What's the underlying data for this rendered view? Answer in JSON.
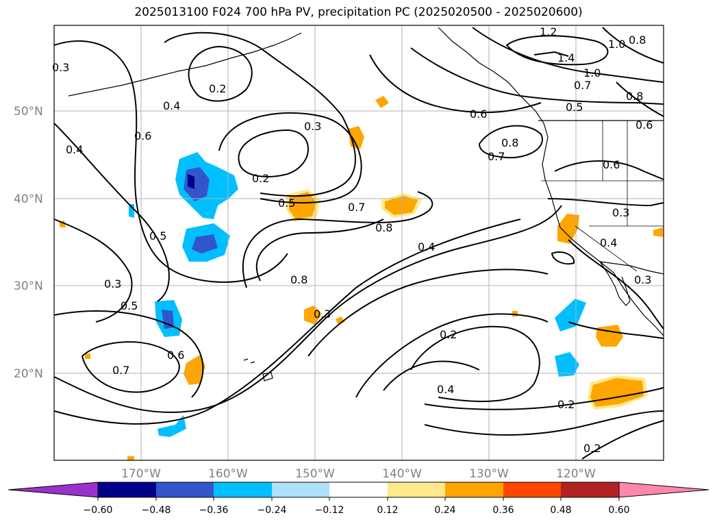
{
  "title": "2025013100 F024 700 hPa PV, precipitation PC (2025020500 - 2025020600)",
  "lat_labels": [
    "50°N",
    "40°N",
    "30°N",
    "20°N"
  ],
  "lon_labels": [
    "170°W",
    "160°W",
    "150°W",
    "140°W",
    "130°W",
    "120°W"
  ],
  "contour_labels": [
    "0.2",
    "0.4",
    "0.3",
    "0.6",
    "0.4",
    "0.2",
    "0.3",
    "0.5",
    "0.7",
    "0.8",
    "0.5",
    "0.3",
    "0.5",
    "0.6",
    "0.7",
    "0.8",
    "0.3",
    "0.4",
    "0.2",
    "0.4",
    "0.2",
    "0.2",
    "0.6",
    "0.8",
    "0.7",
    "0.5",
    "0.7",
    "1.0",
    "1.2",
    "1.4",
    "1.0",
    "0.8",
    "0.8",
    "0.6",
    "0.6",
    "0.3",
    "0.4",
    "0.3"
  ],
  "colorbar": {
    "ticks": [
      "−0.60",
      "−0.48",
      "−0.36",
      "−0.24",
      "−0.12",
      "0.12",
      "0.24",
      "0.36",
      "0.48",
      "0.60"
    ],
    "colors": [
      "#9932cc",
      "#00008b",
      "#3355cc",
      "#00bfff",
      "#aee2fa",
      "#ffffff",
      "#ffe98a",
      "#ffa500",
      "#ff4500",
      "#b22222",
      "#ff88aa"
    ]
  },
  "colors": {
    "positive_fill": "#ffa500",
    "positive_light": "#ffe98a",
    "negative_fill": "#00bfff",
    "negative_light": "#aee2fa",
    "negative_dark": "#3355cc",
    "grid": "#b0b0b0"
  }
}
